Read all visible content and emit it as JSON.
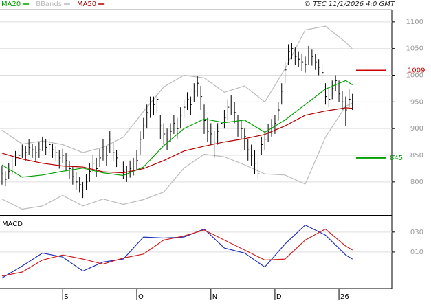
{
  "chart_data": [
    {
      "type": "ohlc",
      "source": "© TEC 11/1/2026 4:0 GMT",
      "x": [
        0,
        1,
        2,
        3,
        4,
        5,
        6,
        7,
        8,
        9,
        10,
        11,
        12,
        13,
        14,
        15,
        16,
        17,
        18,
        19,
        20,
        21,
        22,
        23,
        24,
        25,
        26,
        27,
        28,
        29,
        30,
        31,
        32,
        33,
        34,
        35,
        36,
        37,
        38,
        39,
        40,
        41,
        42,
        43,
        44,
        45,
        46,
        47,
        48,
        49,
        50,
        51,
        52,
        53,
        54,
        55,
        56,
        57,
        58,
        59,
        60,
        61,
        62,
        63,
        64,
        65,
        66,
        67,
        68,
        69,
        70,
        71,
        72,
        73,
        74,
        75,
        76,
        77,
        78,
        79,
        80,
        81,
        82,
        83,
        84,
        85,
        86,
        87,
        88,
        89,
        90,
        91,
        92,
        93,
        94,
        95,
        96,
        97,
        98,
        99,
        100,
        101,
        102,
        103,
        104
      ],
      "high": [
        830,
        820,
        835,
        848,
        858,
        865,
        870,
        868,
        880,
        872,
        868,
        875,
        885,
        880,
        882,
        872,
        868,
        860,
        862,
        855,
        840,
        828,
        818,
        810,
        800,
        815,
        835,
        850,
        845,
        862,
        880,
        868,
        895,
        875,
        860,
        848,
        838,
        830,
        840,
        845,
        860,
        895,
        920,
        945,
        960,
        960,
        962,
        925,
        910,
        900,
        910,
        925,
        920,
        940,
        955,
        968,
        960,
        985,
        998,
        980,
        945,
        920,
        910,
        895,
        910,
        925,
        935,
        955,
        962,
        950,
        925,
        915,
        900,
        880,
        870,
        860,
        840,
        885,
        895,
        908,
        918,
        925,
        950,
        985,
        1025,
        1058,
        1060,
        1052,
        1045,
        1040,
        1035,
        1055,
        1048,
        1040,
        1030,
        1020,
        985,
        975,
        990,
        1000,
        990,
        970,
        960,
        975,
        965
      ],
      "low": [
        795,
        792,
        805,
        815,
        830,
        838,
        845,
        840,
        850,
        845,
        840,
        845,
        858,
        850,
        855,
        845,
        838,
        825,
        835,
        820,
        805,
        795,
        785,
        780,
        770,
        785,
        800,
        818,
        810,
        828,
        840,
        830,
        855,
        838,
        828,
        812,
        805,
        800,
        808,
        812,
        822,
        850,
        880,
        900,
        920,
        925,
        930,
        880,
        870,
        860,
        875,
        890,
        880,
        900,
        920,
        935,
        925,
        950,
        960,
        935,
        890,
        875,
        870,
        845,
        870,
        890,
        900,
        915,
        925,
        910,
        885,
        880,
        860,
        840,
        830,
        815,
        805,
        850,
        860,
        875,
        885,
        890,
        915,
        945,
        985,
        1020,
        1030,
        1020,
        1015,
        1008,
        1005,
        1020,
        1018,
        1010,
        1000,
        985,
        945,
        940,
        955,
        970,
        950,
        935,
        905,
        940,
        935
      ],
      "close": [
        815,
        805,
        820,
        830,
        845,
        850,
        860,
        855,
        865,
        860,
        855,
        860,
        875,
        865,
        870,
        860,
        855,
        845,
        850,
        840,
        825,
        810,
        800,
        795,
        785,
        800,
        820,
        835,
        825,
        845,
        860,
        850,
        880,
        855,
        845,
        830,
        820,
        815,
        825,
        830,
        840,
        880,
        905,
        930,
        950,
        945,
        955,
        905,
        890,
        880,
        895,
        910,
        900,
        925,
        940,
        955,
        945,
        970,
        985,
        960,
        915,
        895,
        890,
        875,
        895,
        910,
        920,
        940,
        950,
        930,
        905,
        900,
        885,
        860,
        850,
        835,
        815,
        870,
        880,
        895,
        905,
        910,
        935,
        970,
        1010,
        1045,
        1050,
        1035,
        1030,
        1025,
        1020,
        1040,
        1035,
        1025,
        1015,
        1005,
        960,
        955,
        975,
        990,
        965,
        950,
        935,
        955,
        950
      ],
      "bar_color": "#000000",
      "series": [
        {
          "name": "MA20",
          "color": "#00a000",
          "x": [
            0,
            6,
            12,
            18,
            24,
            30,
            36,
            42,
            48,
            54,
            60,
            66,
            72,
            78,
            84,
            90,
            96,
            102,
            104
          ],
          "values": [
            832,
            809,
            813,
            820,
            826,
            817,
            812,
            828,
            868,
            900,
            918,
            911,
            916,
            893,
            916,
            945,
            974,
            990,
            982
          ]
        },
        {
          "name": "BBands",
          "color": "#bbbbbb",
          "x": [
            0,
            6,
            12,
            18,
            24,
            30,
            36,
            42,
            48,
            54,
            60,
            66,
            72,
            78,
            84,
            90,
            96,
            102,
            104
          ],
          "upper": [
            897,
            871,
            877,
            870,
            855,
            865,
            884,
            932,
            978,
            1000,
            995,
            968,
            980,
            950,
            1012,
            1085,
            1092,
            1062,
            1049
          ],
          "lower": [
            768,
            749,
            755,
            775,
            755,
            768,
            758,
            767,
            781,
            826,
            852,
            847,
            832,
            815,
            813,
            796,
            884,
            942,
            948
          ]
        },
        {
          "name": "MA50",
          "color": "#b00000",
          "x": [
            0,
            6,
            12,
            18,
            24,
            30,
            36,
            42,
            48,
            54,
            60,
            66,
            72,
            78,
            84,
            90,
            96,
            102,
            104
          ],
          "values": [
            854,
            843,
            835,
            830,
            828,
            819,
            817,
            825,
            840,
            858,
            867,
            875,
            881,
            889,
            905,
            925,
            933,
            939,
            938
          ]
        }
      ],
      "reference_lines": [
        {
          "value": 1009,
          "color": "#cc0000"
        },
        {
          "value": 845,
          "color": "#00a000"
        }
      ],
      "xlim": [
        -0.6,
        115.7
      ],
      "ylim": [
        738,
        1123
      ],
      "yticks": [
        1100,
        1050,
        1000,
        950,
        900,
        850,
        800
      ],
      "grid": true
    },
    {
      "type": "line",
      "title": "MACD",
      "series": [
        {
          "color": "#2030c0",
          "x": [
            0,
            6,
            12,
            18,
            24,
            30,
            36,
            42,
            48,
            54,
            60,
            66,
            72,
            78,
            84,
            90,
            96,
            102,
            104
          ],
          "values": [
            -16,
            -4,
            9,
            5,
            -9,
            0,
            3,
            25,
            24,
            25,
            33,
            14,
            9,
            -5,
            18,
            37,
            27,
            7,
            3
          ]
        },
        {
          "color": "#d02020",
          "x": [
            0,
            6,
            12,
            18,
            24,
            30,
            36,
            42,
            48,
            54,
            60,
            66,
            72,
            78,
            84,
            90,
            96,
            102,
            104
          ],
          "values": [
            -14,
            -10,
            2,
            7,
            3,
            -2,
            4,
            8,
            22,
            26,
            32,
            22,
            12,
            2,
            3,
            22,
            33,
            16,
            12
          ]
        }
      ],
      "xlim": [
        -0.6,
        115.7
      ],
      "ylim": [
        -26.5,
        45
      ],
      "yticks": [
        {
          "value": 30,
          "label": "030"
        },
        {
          "value": 10,
          "label": "010"
        }
      ],
      "xticks": [
        {
          "value": 18,
          "label": "S"
        },
        {
          "value": 40,
          "label": "O"
        },
        {
          "value": 62,
          "label": "N"
        },
        {
          "value": 81,
          "label": "D"
        },
        {
          "value": 100,
          "label": "26"
        }
      ],
      "grid": true
    }
  ]
}
